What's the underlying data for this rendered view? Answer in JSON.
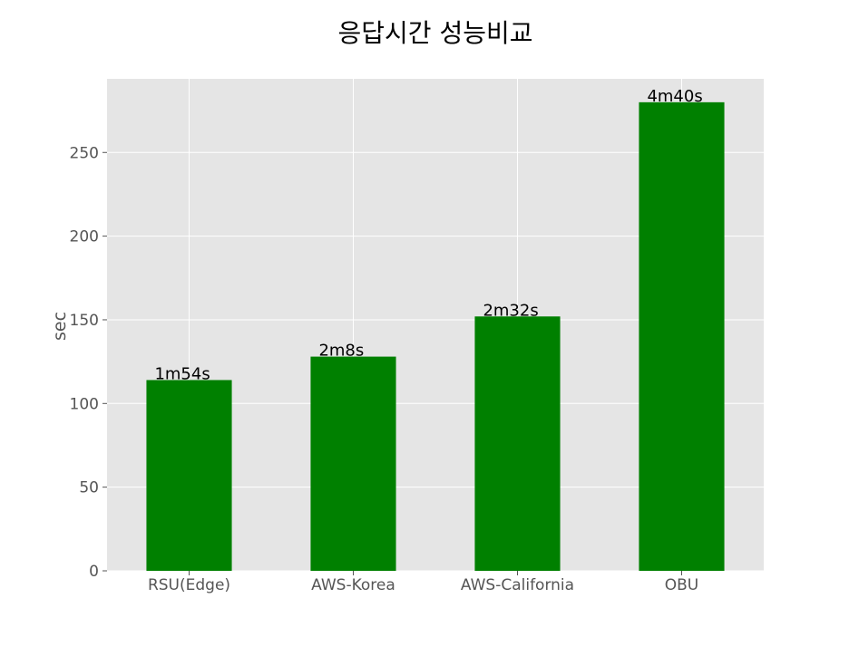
{
  "chart_data": {
    "type": "bar",
    "title": "응답시간 성능비교",
    "xlabel": "",
    "ylabel": "sec",
    "categories": [
      "RSU(Edge)",
      "AWS-Korea",
      "AWS-California",
      "OBU"
    ],
    "values": [
      114,
      128,
      152,
      280
    ],
    "data_labels": [
      "1m54s",
      "2m8s",
      "2m32s",
      "4m40s"
    ],
    "ylim": [
      0,
      294
    ],
    "yticks": [
      0,
      50,
      100,
      150,
      200,
      250
    ],
    "ytick_labels": [
      "0",
      "50",
      "100",
      "150",
      "200",
      "250"
    ],
    "grid": true,
    "legend": "none",
    "colors": {
      "bar": "#008000",
      "plot_background": "#e5e5e5",
      "grid": "#ffffff",
      "tick_text": "#555555",
      "label_text": "#000000"
    }
  }
}
